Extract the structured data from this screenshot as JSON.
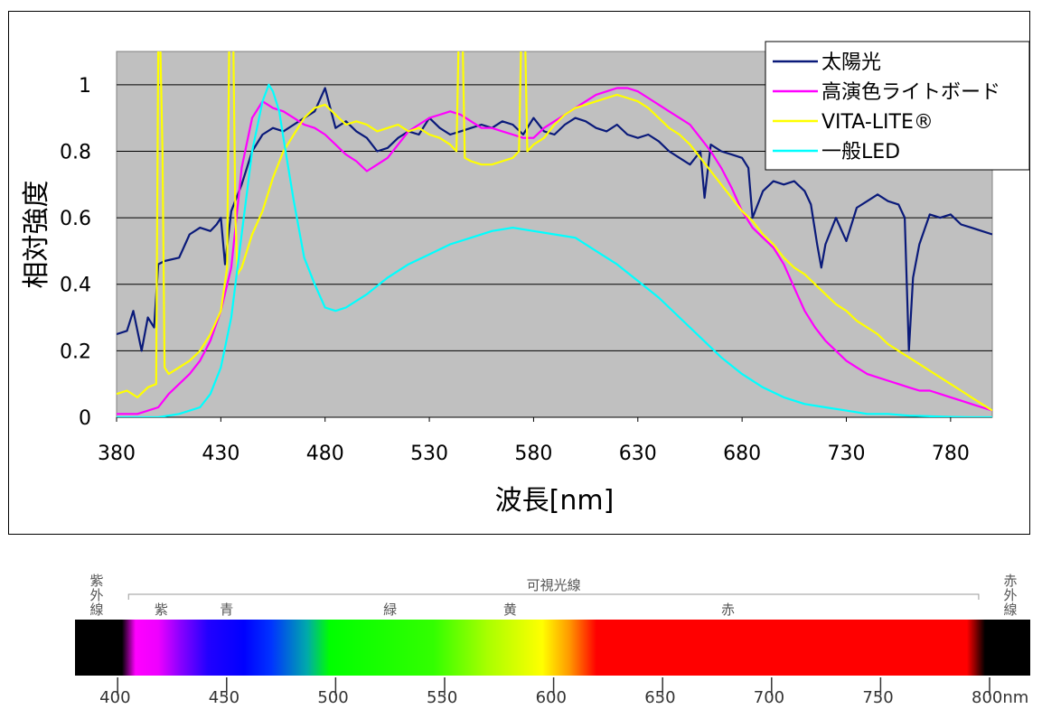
{
  "chart_data": {
    "type": "line",
    "xlabel": "波長[nm]",
    "ylabel": "相対強度",
    "xlim": [
      380,
      800
    ],
    "ylim": [
      0,
      1.1
    ],
    "x_ticks": [
      "380",
      "430",
      "480",
      "530",
      "580",
      "630",
      "680",
      "730",
      "780"
    ],
    "y_ticks": [
      "0",
      "0.2",
      "0.4",
      "0.6",
      "0.8",
      "1"
    ],
    "grid": true,
    "legend_position": "top-right",
    "series": [
      {
        "name": "太陽光",
        "color": "#0a1a7a",
        "x": [
          380,
          385,
          388,
          392,
          395,
          398,
          400,
          403,
          410,
          415,
          420,
          425,
          428,
          430,
          432,
          435,
          440,
          445,
          450,
          455,
          460,
          465,
          470,
          475,
          480,
          485,
          490,
          495,
          500,
          505,
          510,
          515,
          520,
          525,
          530,
          535,
          540,
          545,
          550,
          555,
          560,
          565,
          570,
          575,
          580,
          585,
          590,
          595,
          600,
          605,
          610,
          615,
          620,
          625,
          630,
          635,
          640,
          645,
          650,
          655,
          660,
          662,
          665,
          670,
          675,
          680,
          683,
          685,
          690,
          695,
          700,
          705,
          710,
          713,
          716,
          718,
          720,
          725,
          730,
          735,
          740,
          745,
          750,
          755,
          758,
          760,
          762,
          765,
          770,
          775,
          780,
          785,
          790,
          795,
          800
        ],
        "y": [
          0.25,
          0.26,
          0.32,
          0.2,
          0.3,
          0.27,
          0.46,
          0.47,
          0.48,
          0.55,
          0.57,
          0.56,
          0.58,
          0.6,
          0.46,
          0.62,
          0.7,
          0.8,
          0.85,
          0.87,
          0.86,
          0.88,
          0.9,
          0.92,
          0.99,
          0.87,
          0.89,
          0.86,
          0.84,
          0.8,
          0.81,
          0.84,
          0.86,
          0.85,
          0.9,
          0.87,
          0.85,
          0.86,
          0.87,
          0.88,
          0.87,
          0.89,
          0.88,
          0.85,
          0.9,
          0.86,
          0.85,
          0.88,
          0.9,
          0.89,
          0.87,
          0.86,
          0.88,
          0.85,
          0.84,
          0.85,
          0.83,
          0.8,
          0.78,
          0.76,
          0.8,
          0.66,
          0.82,
          0.8,
          0.79,
          0.78,
          0.75,
          0.6,
          0.68,
          0.71,
          0.7,
          0.71,
          0.68,
          0.64,
          0.52,
          0.45,
          0.52,
          0.6,
          0.53,
          0.63,
          0.65,
          0.67,
          0.65,
          0.64,
          0.6,
          0.2,
          0.42,
          0.52,
          0.61,
          0.6,
          0.61,
          0.58,
          0.57,
          0.56,
          0.55
        ]
      },
      {
        "name": "高演色ライトボード",
        "color": "#ff00ff",
        "x": [
          380,
          390,
          400,
          405,
          410,
          415,
          420,
          425,
          430,
          435,
          440,
          445,
          450,
          455,
          460,
          465,
          470,
          475,
          480,
          485,
          490,
          495,
          500,
          505,
          510,
          515,
          520,
          525,
          530,
          535,
          540,
          545,
          550,
          555,
          560,
          565,
          570,
          575,
          580,
          585,
          590,
          595,
          600,
          605,
          610,
          615,
          620,
          625,
          630,
          635,
          640,
          645,
          650,
          655,
          660,
          665,
          670,
          675,
          680,
          685,
          690,
          695,
          700,
          705,
          710,
          715,
          720,
          725,
          730,
          735,
          740,
          745,
          750,
          755,
          760,
          765,
          770,
          775,
          780,
          785,
          790,
          795,
          800
        ],
        "y": [
          0.01,
          0.01,
          0.03,
          0.07,
          0.1,
          0.13,
          0.17,
          0.23,
          0.32,
          0.45,
          0.75,
          0.9,
          0.95,
          0.93,
          0.92,
          0.9,
          0.88,
          0.87,
          0.85,
          0.82,
          0.79,
          0.77,
          0.74,
          0.76,
          0.78,
          0.82,
          0.86,
          0.88,
          0.9,
          0.91,
          0.92,
          0.91,
          0.89,
          0.87,
          0.87,
          0.86,
          0.85,
          0.84,
          0.84,
          0.87,
          0.89,
          0.91,
          0.93,
          0.95,
          0.97,
          0.98,
          0.99,
          0.99,
          0.98,
          0.96,
          0.94,
          0.92,
          0.9,
          0.88,
          0.84,
          0.8,
          0.75,
          0.69,
          0.62,
          0.57,
          0.54,
          0.51,
          0.46,
          0.39,
          0.32,
          0.27,
          0.23,
          0.2,
          0.17,
          0.15,
          0.13,
          0.12,
          0.11,
          0.1,
          0.09,
          0.08,
          0.08,
          0.07,
          0.06,
          0.05,
          0.04,
          0.03,
          0.02
        ]
      },
      {
        "name": "VITA-LITE®",
        "color": "#ffff00",
        "x": [
          380,
          385,
          390,
          395,
          399,
          400,
          401,
          402,
          403,
          405,
          410,
          415,
          420,
          425,
          430,
          433,
          434,
          435,
          436,
          437,
          438,
          440,
          445,
          450,
          455,
          460,
          465,
          470,
          475,
          480,
          485,
          490,
          495,
          500,
          505,
          510,
          515,
          520,
          525,
          530,
          535,
          540,
          543,
          544,
          545,
          546,
          547,
          550,
          555,
          560,
          565,
          570,
          573,
          574,
          575,
          576,
          577,
          580,
          585,
          590,
          595,
          600,
          605,
          610,
          615,
          620,
          625,
          630,
          635,
          640,
          645,
          650,
          655,
          660,
          665,
          670,
          675,
          680,
          685,
          690,
          695,
          700,
          705,
          710,
          715,
          720,
          725,
          730,
          735,
          740,
          745,
          750,
          755,
          760,
          765,
          770,
          775,
          780,
          785,
          790,
          795,
          800
        ],
        "y": [
          0.07,
          0.08,
          0.06,
          0.09,
          0.1,
          1.12,
          1.12,
          0.8,
          0.15,
          0.13,
          0.15,
          0.17,
          0.2,
          0.25,
          0.32,
          0.45,
          1.12,
          1.12,
          1.12,
          0.6,
          0.43,
          0.45,
          0.55,
          0.62,
          0.72,
          0.8,
          0.85,
          0.9,
          0.93,
          0.94,
          0.91,
          0.88,
          0.89,
          0.88,
          0.86,
          0.87,
          0.88,
          0.86,
          0.87,
          0.85,
          0.84,
          0.82,
          0.8,
          1.12,
          1.12,
          1.12,
          0.78,
          0.77,
          0.76,
          0.76,
          0.77,
          0.78,
          0.8,
          1.12,
          1.12,
          1.12,
          0.8,
          0.82,
          0.84,
          0.88,
          0.91,
          0.93,
          0.94,
          0.95,
          0.96,
          0.97,
          0.96,
          0.95,
          0.93,
          0.9,
          0.87,
          0.85,
          0.82,
          0.78,
          0.74,
          0.7,
          0.66,
          0.62,
          0.59,
          0.55,
          0.52,
          0.48,
          0.45,
          0.43,
          0.4,
          0.37,
          0.34,
          0.32,
          0.29,
          0.27,
          0.25,
          0.22,
          0.2,
          0.18,
          0.16,
          0.14,
          0.12,
          0.1,
          0.08,
          0.06,
          0.04,
          0.02
        ]
      },
      {
        "name": "一般LED",
        "color": "#00ffff",
        "x": [
          380,
          400,
          410,
          420,
          425,
          430,
          435,
          440,
          445,
          450,
          453,
          455,
          458,
          460,
          465,
          470,
          475,
          480,
          485,
          490,
          500,
          510,
          520,
          530,
          540,
          550,
          560,
          570,
          580,
          590,
          600,
          610,
          620,
          630,
          640,
          650,
          660,
          670,
          680,
          690,
          700,
          710,
          720,
          730,
          740,
          750,
          760,
          770,
          780,
          790,
          800
        ],
        "y": [
          0.0,
          0.0,
          0.01,
          0.03,
          0.07,
          0.15,
          0.3,
          0.55,
          0.8,
          0.95,
          1.0,
          0.98,
          0.92,
          0.84,
          0.65,
          0.48,
          0.4,
          0.33,
          0.32,
          0.33,
          0.37,
          0.42,
          0.46,
          0.49,
          0.52,
          0.54,
          0.56,
          0.57,
          0.56,
          0.55,
          0.54,
          0.5,
          0.46,
          0.41,
          0.36,
          0.3,
          0.24,
          0.18,
          0.13,
          0.09,
          0.06,
          0.04,
          0.03,
          0.02,
          0.01,
          0.01,
          0.005,
          0.003,
          0.001,
          0.0,
          0.0
        ]
      }
    ]
  },
  "spectrum": {
    "uv_label": "紫外線",
    "ir_label": "赤外線",
    "visible_label": "可視光線",
    "color_names": [
      {
        "text": "紫",
        "nm": 420
      },
      {
        "text": "青",
        "nm": 450
      },
      {
        "text": "緑",
        "nm": 525
      },
      {
        "text": "黄",
        "nm": 580
      },
      {
        "text": "赤",
        "nm": 680
      }
    ],
    "ticks": [
      "400",
      "450",
      "500",
      "550",
      "600",
      "650",
      "700",
      "750",
      "800nm"
    ]
  }
}
